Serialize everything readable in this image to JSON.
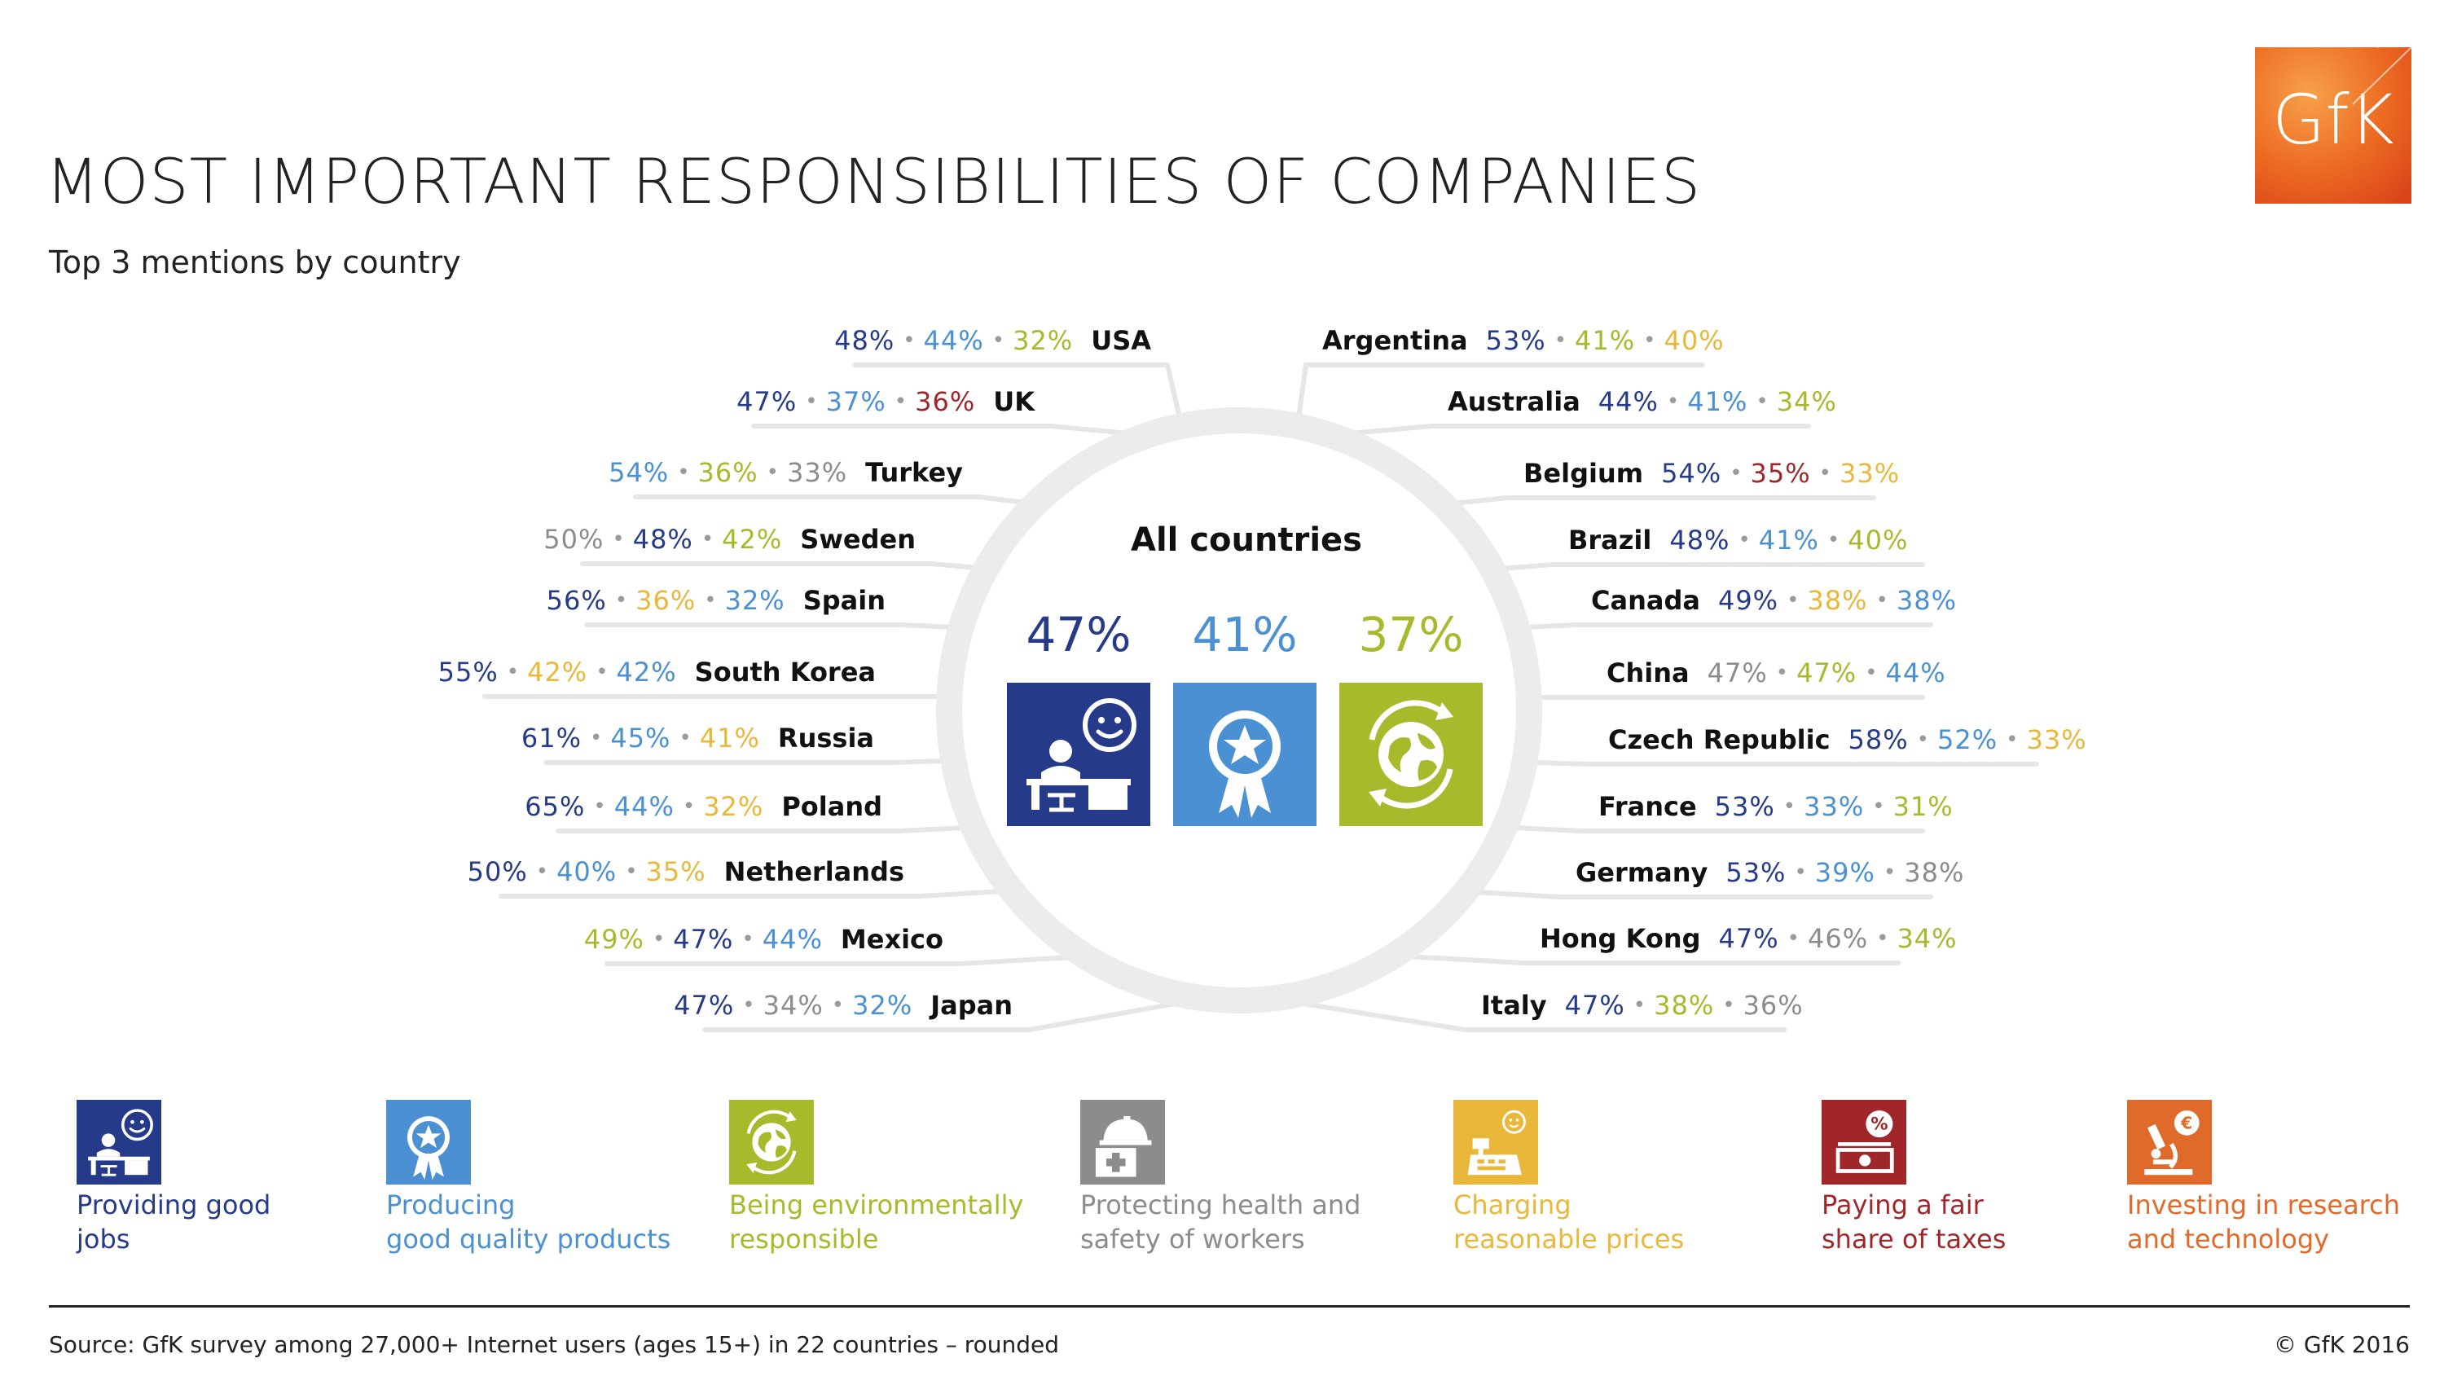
{
  "title": "MOST IMPORTANT RESPONSIBILITIES OF COMPANIES",
  "subtitle": "Top 3 mentions by country",
  "logo": {
    "text": "GfK",
    "color": "#e8541e"
  },
  "colors": {
    "jobs": "#263a8a",
    "products": "#4a90d2",
    "environment": "#a9b92c",
    "health": "#8c8c8c",
    "prices": "#e9b83a",
    "taxes": "#a0262a",
    "research": "#e06a2a"
  },
  "all_countries": {
    "label": "All countries",
    "items": [
      {
        "value": "47%",
        "category": "jobs",
        "icon": "desk-worker-icon"
      },
      {
        "value": "41%",
        "category": "products",
        "icon": "award-ribbon-icon"
      },
      {
        "value": "37%",
        "category": "environment",
        "icon": "globe-recycle-icon"
      }
    ]
  },
  "left_countries": [
    {
      "name": "USA",
      "values": [
        {
          "v": "48%",
          "c": "jobs"
        },
        {
          "v": "44%",
          "c": "products"
        },
        {
          "v": "32%",
          "c": "environment"
        }
      ]
    },
    {
      "name": "UK",
      "values": [
        {
          "v": "47%",
          "c": "jobs"
        },
        {
          "v": "37%",
          "c": "products"
        },
        {
          "v": "36%",
          "c": "taxes"
        }
      ]
    },
    {
      "name": "Turkey",
      "values": [
        {
          "v": "54%",
          "c": "products"
        },
        {
          "v": "36%",
          "c": "environment"
        },
        {
          "v": "33%",
          "c": "health"
        }
      ]
    },
    {
      "name": "Sweden",
      "values": [
        {
          "v": "50%",
          "c": "health"
        },
        {
          "v": "48%",
          "c": "jobs"
        },
        {
          "v": "42%",
          "c": "environment"
        }
      ]
    },
    {
      "name": "Spain",
      "values": [
        {
          "v": "56%",
          "c": "jobs"
        },
        {
          "v": "36%",
          "c": "prices"
        },
        {
          "v": "32%",
          "c": "products"
        }
      ]
    },
    {
      "name": "South Korea",
      "values": [
        {
          "v": "55%",
          "c": "jobs"
        },
        {
          "v": "42%",
          "c": "prices"
        },
        {
          "v": "42%",
          "c": "products"
        }
      ]
    },
    {
      "name": "Russia",
      "values": [
        {
          "v": "61%",
          "c": "jobs"
        },
        {
          "v": "45%",
          "c": "products"
        },
        {
          "v": "41%",
          "c": "prices"
        }
      ]
    },
    {
      "name": "Poland",
      "values": [
        {
          "v": "65%",
          "c": "jobs"
        },
        {
          "v": "44%",
          "c": "products"
        },
        {
          "v": "32%",
          "c": "prices"
        }
      ]
    },
    {
      "name": "Netherlands",
      "values": [
        {
          "v": "50%",
          "c": "jobs"
        },
        {
          "v": "40%",
          "c": "products"
        },
        {
          "v": "35%",
          "c": "prices"
        }
      ]
    },
    {
      "name": "Mexico",
      "values": [
        {
          "v": "49%",
          "c": "environment"
        },
        {
          "v": "47%",
          "c": "jobs"
        },
        {
          "v": "44%",
          "c": "products"
        }
      ]
    },
    {
      "name": "Japan",
      "values": [
        {
          "v": "47%",
          "c": "jobs"
        },
        {
          "v": "34%",
          "c": "health"
        },
        {
          "v": "32%",
          "c": "products"
        }
      ]
    }
  ],
  "right_countries": [
    {
      "name": "Argentina",
      "values": [
        {
          "v": "53%",
          "c": "jobs"
        },
        {
          "v": "41%",
          "c": "environment"
        },
        {
          "v": "40%",
          "c": "prices"
        }
      ]
    },
    {
      "name": "Australia",
      "values": [
        {
          "v": "44%",
          "c": "jobs"
        },
        {
          "v": "41%",
          "c": "products"
        },
        {
          "v": "34%",
          "c": "environment"
        }
      ]
    },
    {
      "name": "Belgium",
      "values": [
        {
          "v": "54%",
          "c": "jobs"
        },
        {
          "v": "35%",
          "c": "taxes"
        },
        {
          "v": "33%",
          "c": "prices"
        }
      ]
    },
    {
      "name": "Brazil",
      "values": [
        {
          "v": "48%",
          "c": "jobs"
        },
        {
          "v": "41%",
          "c": "products"
        },
        {
          "v": "40%",
          "c": "environment"
        }
      ]
    },
    {
      "name": "Canada",
      "values": [
        {
          "v": "49%",
          "c": "jobs"
        },
        {
          "v": "38%",
          "c": "prices"
        },
        {
          "v": "38%",
          "c": "products"
        }
      ]
    },
    {
      "name": "China",
      "values": [
        {
          "v": "47%",
          "c": "health"
        },
        {
          "v": "47%",
          "c": "environment"
        },
        {
          "v": "44%",
          "c": "products"
        }
      ]
    },
    {
      "name": "Czech Republic",
      "values": [
        {
          "v": "58%",
          "c": "jobs"
        },
        {
          "v": "52%",
          "c": "products"
        },
        {
          "v": "33%",
          "c": "prices"
        }
      ]
    },
    {
      "name": "France",
      "values": [
        {
          "v": "53%",
          "c": "jobs"
        },
        {
          "v": "33%",
          "c": "products"
        },
        {
          "v": "31%",
          "c": "environment"
        }
      ]
    },
    {
      "name": "Germany",
      "values": [
        {
          "v": "53%",
          "c": "jobs"
        },
        {
          "v": "39%",
          "c": "products"
        },
        {
          "v": "38%",
          "c": "health"
        }
      ]
    },
    {
      "name": "Hong Kong",
      "values": [
        {
          "v": "47%",
          "c": "jobs"
        },
        {
          "v": "46%",
          "c": "health"
        },
        {
          "v": "34%",
          "c": "environment"
        }
      ]
    },
    {
      "name": "Italy",
      "values": [
        {
          "v": "47%",
          "c": "jobs"
        },
        {
          "v": "38%",
          "c": "environment"
        },
        {
          "v": "36%",
          "c": "health"
        }
      ]
    }
  ],
  "legend": [
    {
      "category": "jobs",
      "icon": "desk-worker-icon",
      "line1": "Providing good",
      "line2": "jobs"
    },
    {
      "category": "products",
      "icon": "award-ribbon-icon",
      "line1": "Producing",
      "line2": "good quality products"
    },
    {
      "category": "environment",
      "icon": "globe-recycle-icon",
      "line1": "Being environmentally",
      "line2": "responsible"
    },
    {
      "category": "health",
      "icon": "hard-hat-first-aid-icon",
      "line1": "Protecting health and",
      "line2": "safety of workers"
    },
    {
      "category": "prices",
      "icon": "cash-register-icon",
      "line1": "Charging",
      "line2": "reasonable prices"
    },
    {
      "category": "taxes",
      "icon": "money-percent-icon",
      "line1": "Paying a fair",
      "line2": "share of taxes"
    },
    {
      "category": "research",
      "icon": "microscope-euro-icon",
      "line1": "Investing in research",
      "line2": "and technology"
    }
  ],
  "footer": {
    "source": "Source: GfK survey among 27,000+ Internet users (ages 15+) in 22 countries – rounded",
    "copyright": "© GfK 2016"
  }
}
